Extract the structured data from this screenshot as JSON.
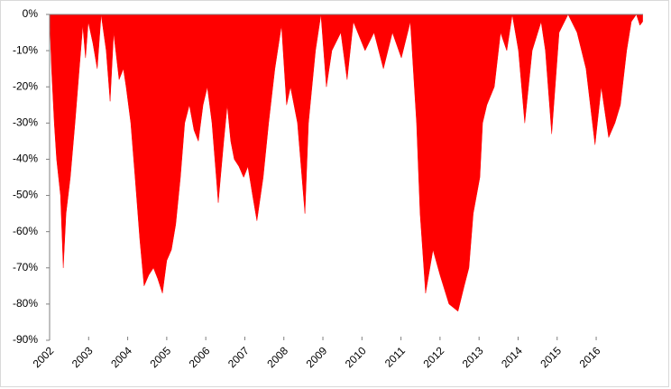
{
  "chart_data": {
    "type": "area",
    "color": "#ff0000",
    "x": [
      2002.0,
      2002.05,
      2002.12,
      2002.18,
      2002.28,
      2002.35,
      2002.42,
      2002.53,
      2002.65,
      2002.76,
      2002.85,
      2002.92,
      2002.99,
      2003.11,
      2003.22,
      2003.32,
      2003.45,
      2003.55,
      2003.64,
      2003.78,
      2003.89,
      2003.96,
      2004.08,
      2004.19,
      2004.31,
      2004.42,
      2004.54,
      2004.66,
      2004.77,
      2004.89,
      2005.0,
      2005.12,
      2005.23,
      2005.35,
      2005.46,
      2005.58,
      2005.7,
      2005.81,
      2005.93,
      2006.04,
      2006.16,
      2006.27,
      2006.32,
      2006.46,
      2006.55,
      2006.64,
      2006.73,
      2006.85,
      2006.97,
      2007.08,
      2007.2,
      2007.31,
      2007.47,
      2007.61,
      2007.77,
      2007.94,
      2008.07,
      2008.17,
      2008.35,
      2008.54,
      2008.63,
      2008.81,
      2008.95,
      2009.09,
      2009.23,
      2009.46,
      2009.62,
      2009.78,
      2010.08,
      2010.31,
      2010.55,
      2010.78,
      2011.01,
      2011.24,
      2011.4,
      2011.49,
      2011.63,
      2011.82,
      2012.0,
      2012.23,
      2012.46,
      2012.62,
      2012.74,
      2012.85,
      2013.02,
      2013.09,
      2013.2,
      2013.39,
      2013.55,
      2013.71,
      2013.85,
      2014.01,
      2014.17,
      2014.36,
      2014.59,
      2014.7,
      2014.86,
      2015.05,
      2015.28,
      2015.51,
      2015.74,
      2015.97,
      2016.13,
      2016.32,
      2016.48,
      2016.62,
      2016.78,
      2016.9,
      2017.03,
      2017.12,
      2017.19
    ],
    "values": [
      0,
      -15,
      -30,
      -40,
      -50,
      -70,
      -55,
      -45,
      -30,
      -15,
      -3,
      -12,
      -2,
      -8,
      -15,
      0,
      -10,
      -24,
      -5,
      -18,
      -15,
      -20,
      -30,
      -45,
      -62,
      -75,
      -72,
      -70,
      -73,
      -77,
      -68,
      -65,
      -58,
      -45,
      -30,
      -25,
      -32,
      -35,
      -25,
      -20,
      -30,
      -45,
      -52,
      -35,
      -25,
      -35,
      -40,
      -42,
      -45,
      -42,
      -50,
      -57,
      -45,
      -30,
      -15,
      -3,
      -25,
      -20,
      -30,
      -55,
      -30,
      -10,
      0,
      -20,
      -10,
      -5,
      -18,
      -2,
      -10,
      -5,
      -15,
      -5,
      -12,
      -2,
      -30,
      -55,
      -77,
      -65,
      -72,
      -80,
      -82,
      -75,
      -70,
      -55,
      -45,
      -30,
      -25,
      -20,
      -5,
      -10,
      0,
      -10,
      -30,
      -10,
      -2,
      -10,
      -33,
      -5,
      0,
      -5,
      -15,
      -36,
      -20,
      -34,
      -30,
      -25,
      -10,
      -2,
      0,
      -3,
      -2
    ],
    "xlim": [
      2002,
      2017.2
    ],
    "xticks": [
      2002,
      2003,
      2004,
      2005,
      2006,
      2007,
      2008,
      2009,
      2010,
      2011,
      2012,
      2013,
      2014,
      2015,
      2016
    ],
    "ylim": [
      -90,
      0
    ],
    "yticks": [
      {
        "value": 0,
        "label": "0%"
      },
      {
        "value": -10,
        "label": "-10%"
      },
      {
        "value": -20,
        "label": "-20%"
      },
      {
        "value": -30,
        "label": "-30%"
      },
      {
        "value": -40,
        "label": "-40%"
      },
      {
        "value": -50,
        "label": "-50%"
      },
      {
        "value": -60,
        "label": "-60%"
      },
      {
        "value": -70,
        "label": "-70%"
      },
      {
        "value": -80,
        "label": "-80%"
      },
      {
        "value": -90,
        "label": "-90%"
      }
    ]
  }
}
